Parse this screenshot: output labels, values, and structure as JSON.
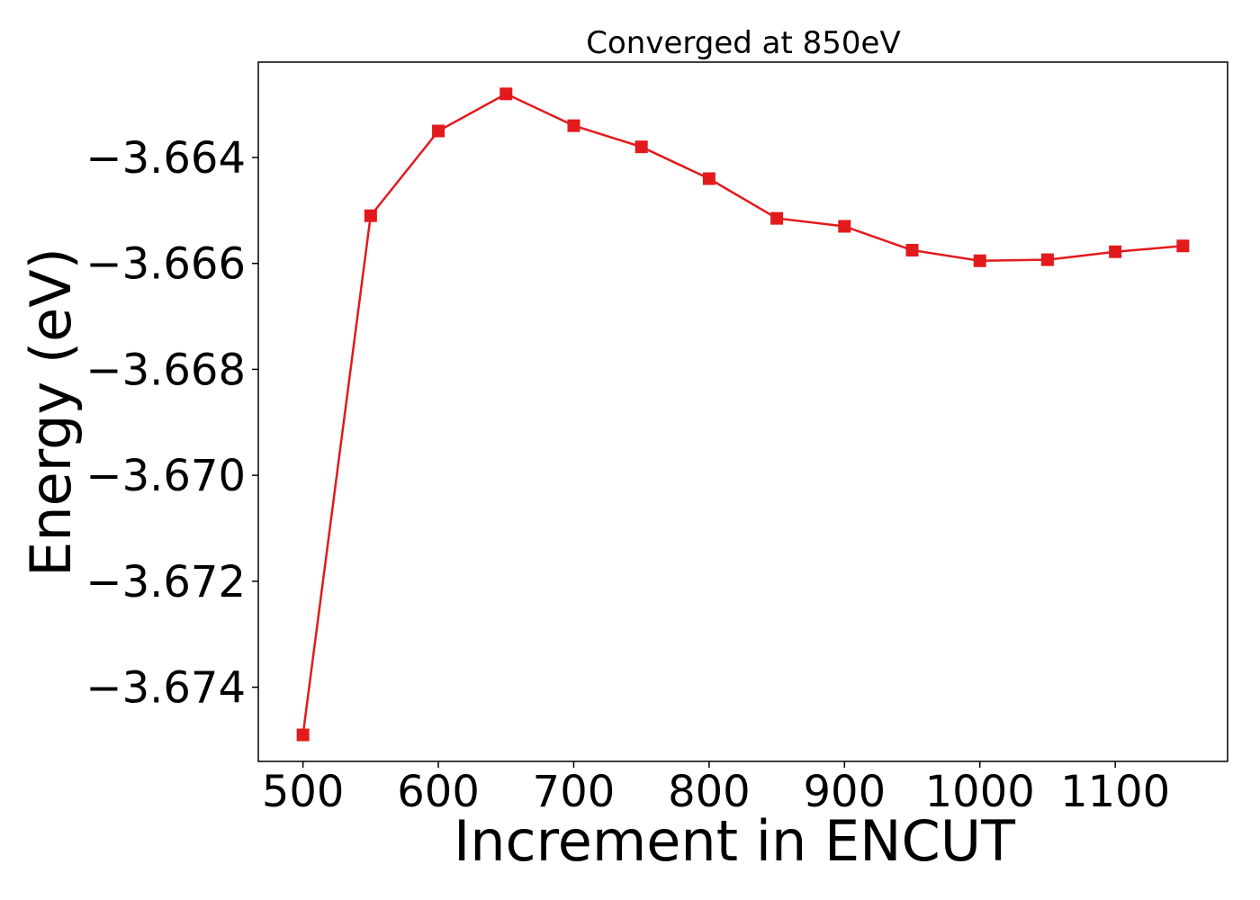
{
  "chart_data": {
    "type": "line",
    "title": "Converged at 850eV",
    "xlabel": "Increment in ENCUT",
    "ylabel": "Energy (eV)",
    "xlim": [
      467,
      1183
    ],
    "ylim": [
      -3.6754,
      -3.6622
    ],
    "x_ticks": [
      500,
      600,
      700,
      800,
      900,
      1000,
      1100
    ],
    "x_tick_labels": [
      "500",
      "600",
      "700",
      "800",
      "900",
      "1000",
      "1100"
    ],
    "y_ticks": [
      -3.664,
      -3.666,
      -3.668,
      -3.67,
      -3.672,
      -3.674
    ],
    "y_tick_labels": [
      "−3.664",
      "−3.666",
      "−3.668",
      "−3.670",
      "−3.672",
      "−3.674"
    ],
    "grid": false,
    "series": [
      {
        "color": "#e31a1c",
        "marker": "square",
        "x": [
          500,
          550,
          600,
          650,
          700,
          750,
          800,
          850,
          900,
          950,
          1000,
          1050,
          1100,
          1150
        ],
        "y": [
          -3.6749,
          -3.6651,
          -3.6635,
          -3.6628,
          -3.6634,
          -3.6638,
          -3.6644,
          -3.66515,
          -3.6653,
          -3.66575,
          -3.66595,
          -3.66593,
          -3.66578,
          -3.66567
        ]
      }
    ]
  }
}
